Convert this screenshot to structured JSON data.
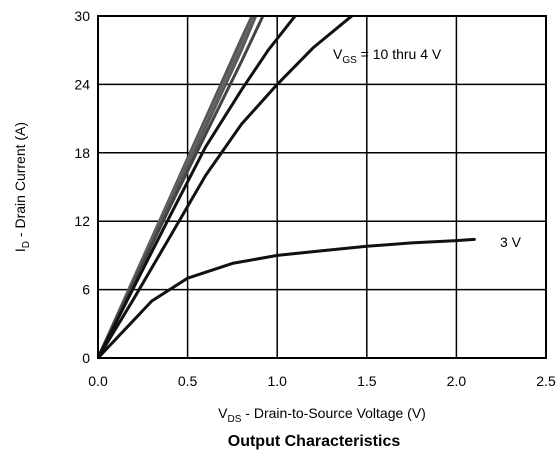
{
  "chart_data": {
    "type": "line",
    "title": "",
    "caption": "Output Characteristics",
    "xlabel": {
      "main": "V",
      "sub": "DS",
      "rest": " - Drain-to-Source Voltage (V)"
    },
    "ylabel": {
      "main": "I",
      "sub": "D",
      "rest": " - Drain Current (A)"
    },
    "xlim": [
      0,
      2.5
    ],
    "ylim": [
      0,
      30
    ],
    "x_ticks": [
      "0.0",
      "0.5",
      "1.0",
      "1.5",
      "2.0",
      "2.5"
    ],
    "y_ticks": [
      "0",
      "6",
      "12",
      "18",
      "24",
      "30"
    ],
    "grid": true,
    "annotations": {
      "vgs_high": {
        "main": "V",
        "sub": "GS",
        "rest": " = 10 thru 4 V"
      },
      "vgs_low": "3 V"
    },
    "series": [
      {
        "color": "#555555",
        "points": [
          [
            0,
            0
          ],
          [
            0.2,
            7
          ],
          [
            0.4,
            14
          ],
          [
            0.6,
            21
          ],
          [
            0.8,
            28
          ],
          [
            0.86,
            30
          ]
        ]
      },
      {
        "color": "#666666",
        "points": [
          [
            0,
            0
          ],
          [
            0.2,
            6.9
          ],
          [
            0.4,
            13.8
          ],
          [
            0.6,
            20.6
          ],
          [
            0.8,
            27.4
          ],
          [
            0.87,
            30
          ]
        ]
      },
      {
        "color": "#5a5a5a",
        "points": [
          [
            0,
            0
          ],
          [
            0.2,
            6.8
          ],
          [
            0.4,
            13.6
          ],
          [
            0.6,
            20.2
          ],
          [
            0.8,
            27
          ],
          [
            0.88,
            30
          ]
        ]
      },
      {
        "color": "#444444",
        "points": [
          [
            0,
            0
          ],
          [
            0.2,
            6.6
          ],
          [
            0.4,
            13.2
          ],
          [
            0.6,
            19.6
          ],
          [
            0.8,
            26
          ],
          [
            0.92,
            30
          ]
        ]
      },
      {
        "color": "#111111",
        "points": [
          [
            0,
            0
          ],
          [
            0.2,
            6.2
          ],
          [
            0.4,
            12.4
          ],
          [
            0.6,
            18.5
          ],
          [
            0.8,
            23.5
          ],
          [
            0.95,
            27
          ],
          [
            1.1,
            30
          ]
        ]
      },
      {
        "color": "#111111",
        "points": [
          [
            0,
            0
          ],
          [
            0.2,
            5.2
          ],
          [
            0.4,
            10.6
          ],
          [
            0.6,
            16
          ],
          [
            0.8,
            20.5
          ],
          [
            1.0,
            24
          ],
          [
            1.2,
            27.2
          ],
          [
            1.4,
            29.8
          ],
          [
            1.5,
            31
          ]
        ]
      },
      {
        "color": "#111111",
        "points": [
          [
            0,
            0
          ],
          [
            0.3,
            5
          ],
          [
            0.5,
            7
          ],
          [
            0.75,
            8.3
          ],
          [
            1.0,
            9
          ],
          [
            1.25,
            9.4
          ],
          [
            1.5,
            9.8
          ],
          [
            1.75,
            10.1
          ],
          [
            2.0,
            10.3
          ],
          [
            2.1,
            10.4
          ]
        ]
      }
    ]
  }
}
